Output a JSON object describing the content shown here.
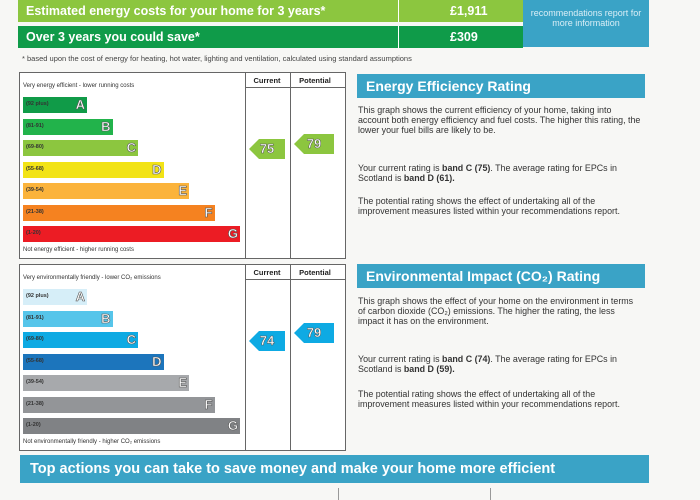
{
  "top": {
    "estimated_label": "Estimated energy costs for your home for 3 years*",
    "estimated_value": "£1,911",
    "save_label": "Over 3 years you could save*",
    "save_value": "£309",
    "side_note": "recommendations report for more information",
    "footnote": "* based upon the cost of energy for heating, hot water, lighting and ventilation, calculated using standard assumptions"
  },
  "energy_chart": {
    "top_caption": "Very energy efficient - lower running costs",
    "bottom_caption": "Not energy efficient - higher running costs",
    "current_header": "Current",
    "potential_header": "Potential",
    "current_value": "75",
    "potential_value": "79",
    "bands": [
      {
        "range": "(92 plus)",
        "letter": "A",
        "color": "#109b48"
      },
      {
        "range": "(81-91)",
        "letter": "B",
        "color": "#22b34b"
      },
      {
        "range": "(69-80)",
        "letter": "C",
        "color": "#8cc63f"
      },
      {
        "range": "(55-68)",
        "letter": "D",
        "color": "#f2e316"
      },
      {
        "range": "(39-54)",
        "letter": "E",
        "color": "#fbb33b"
      },
      {
        "range": "(21-38)",
        "letter": "F",
        "color": "#f58220"
      },
      {
        "range": "(1-20)",
        "letter": "G",
        "color": "#ec1c24"
      }
    ]
  },
  "env_chart": {
    "top_caption": "Very environmentally friendly - lower CO₂ emissions",
    "bottom_caption": "Not environmentally friendly - higher CO₂ emissions",
    "current_header": "Current",
    "potential_header": "Potential",
    "current_value": "74",
    "potential_value": "79",
    "bands": [
      {
        "range": "(92 plus)",
        "letter": "A",
        "color": "#d6eef8"
      },
      {
        "range": "(81-91)",
        "letter": "B",
        "color": "#56c5ea"
      },
      {
        "range": "(69-80)",
        "letter": "C",
        "color": "#0eaae3"
      },
      {
        "range": "(55-68)",
        "letter": "D",
        "color": "#1c75bc"
      },
      {
        "range": "(39-54)",
        "letter": "E",
        "color": "#a7a9ac"
      },
      {
        "range": "(21-38)",
        "letter": "F",
        "color": "#939598"
      },
      {
        "range": "(1-20)",
        "letter": "G",
        "color": "#808285"
      }
    ]
  },
  "energy_text": {
    "heading": "Energy Efficiency Rating",
    "p1": "This graph shows the current efficiency of your home, taking into account both energy efficiency and fuel costs. The higher this rating, the lower your fuel bills are likely to be.",
    "p2_a": "Your current rating is ",
    "p2_b": "band C (75)",
    "p2_c": ". The average rating for EPCs in Scotland is ",
    "p2_d": "band D (61).",
    "p3": "The potential rating shows the effect of undertaking all of the improvement measures listed within your recommendations report."
  },
  "env_text": {
    "heading": "Environmental Impact (CO₂) Rating",
    "p1": "This graph shows the effect of your home on the environment in terms of carbon dioxide (CO₂) emissions. The higher the rating, the less impact it has on the environment.",
    "p2_a": "Your current rating is ",
    "p2_b": "band C (74)",
    "p2_c": ". The average rating for EPCs in Scotland is ",
    "p2_d": "band D (59).",
    "p3": "The potential rating shows the effect of undertaking all of the improvement measures listed within your recommendations report."
  },
  "bottom": {
    "heading": "Top actions you can take to save money and make your home more efficient"
  }
}
